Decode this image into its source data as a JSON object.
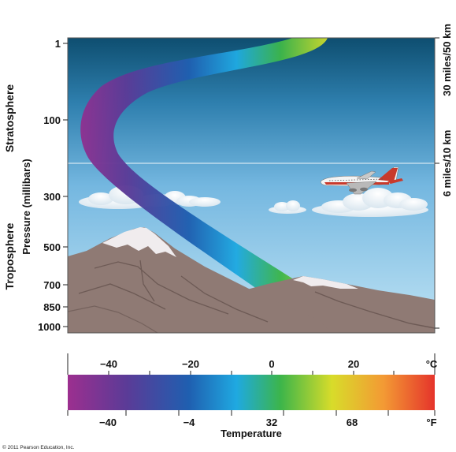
{
  "left_labels": {
    "stratosphere": "Stratosphere",
    "troposphere": "Troposphere",
    "pressure_axis": "Pressure (millibars)"
  },
  "pressure_ticks": [
    "1",
    "100",
    "300",
    "500",
    "700",
    "850",
    "1000"
  ],
  "altitude_labels": [
    "30 miles/50 km",
    "6 miles/10 km"
  ],
  "temperature_scale": {
    "celsius_ticks": [
      "−40",
      "−20",
      "0",
      "20"
    ],
    "celsius_unit": "°C",
    "fahrenheit_ticks": [
      "−40",
      "−4",
      "32",
      "68"
    ],
    "fahrenheit_unit": "°F",
    "title": "Temperature",
    "gradient_colors": [
      "#9c2f8f",
      "#5b3b97",
      "#1f5fb0",
      "#1fa9e1",
      "#3cb54a",
      "#d8dc2a",
      "#f39a34",
      "#e5342b"
    ]
  },
  "colors": {
    "sky_top": "#0e4e70",
    "sky_bottom": "#bfe3f4",
    "mountain": "#8f7a74",
    "snow": "#f0ecee"
  },
  "copyright": "© 2011 Pearson Education, Inc."
}
